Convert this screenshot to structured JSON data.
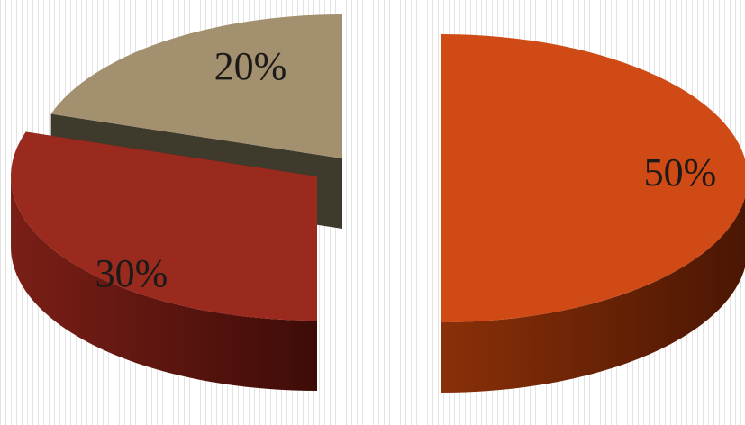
{
  "chart_data": {
    "type": "pie",
    "style": "3d-exploded",
    "title": "",
    "legend": "none",
    "slices": [
      {
        "value": 50,
        "label": "50%",
        "color": "#d04a16",
        "side_color": "#6e2206"
      },
      {
        "value": 30,
        "label": "30%",
        "color": "#9a2a1e",
        "side_color": "#52130d"
      },
      {
        "value": 20,
        "label": "20%",
        "color": "#a2906e",
        "side_color": "#3e3a2c"
      }
    ]
  }
}
